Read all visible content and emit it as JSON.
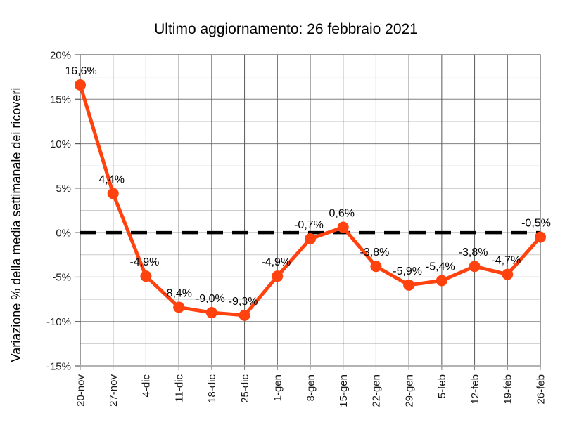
{
  "chart_data": {
    "type": "line",
    "title": "Ultimo aggiornamento: 26 febbraio 2021",
    "ylabel": "Variazione  % della media settimanale dei ricoveri",
    "xlabel": "",
    "categories": [
      "20-nov",
      "27-nov",
      "4-dic",
      "11-dic",
      "18-dic",
      "25-dic",
      "1-gen",
      "8-gen",
      "15-gen",
      "22-gen",
      "29-gen",
      "5-feb",
      "12-feb",
      "19-feb",
      "26-feb"
    ],
    "values": [
      16.6,
      4.4,
      -4.9,
      -8.4,
      -9.0,
      -9.3,
      -4.9,
      -0.7,
      0.6,
      -3.8,
      -5.9,
      -5.4,
      -3.8,
      -4.7,
      -0.5
    ],
    "data_labels": [
      "16,6%",
      "4,4%",
      "-4,9%",
      "-8,4%",
      "-9,0%",
      "-9,3%",
      "-4,9%",
      "-0,7%",
      "0,6%",
      "-3,8%",
      "-5,9%",
      "-5,4%",
      "-3,8%",
      "-4,7%",
      "-0,5%"
    ],
    "y_tick_labels": [
      "20%",
      "15%",
      "10%",
      "5%",
      "0%",
      "-5%",
      "-10%",
      "-15%"
    ],
    "ylim": [
      -15,
      20
    ],
    "y_major_step": 5,
    "y_minor_step": 2.5,
    "grid": "major+minor",
    "legend": "none",
    "zero_line_style": "dashed",
    "line_color": "#FF420E",
    "zero_line_color": "#000000"
  }
}
